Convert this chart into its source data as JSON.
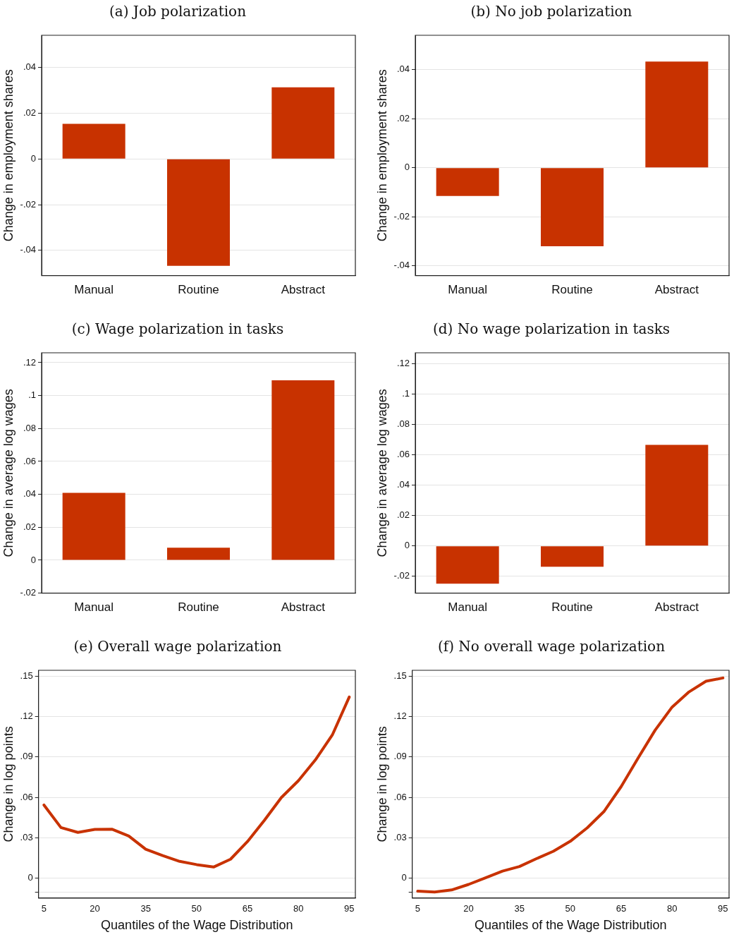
{
  "chart_data": [
    {
      "type": "bar",
      "title": "(a) Job polarization",
      "ylabel": "Change in employment shares",
      "categories": [
        "Manual",
        "Routine",
        "Abstract"
      ],
      "values": [
        0.0153,
        -0.0467,
        0.0313
      ],
      "color": "#c83200",
      "ylim": [
        -0.051,
        0.054
      ],
      "yticks": [
        {
          "value": -0.04,
          "label": "-.04"
        },
        {
          "value": -0.02,
          "label": "-.02"
        },
        {
          "value": 0,
          "label": "0"
        },
        {
          "value": 0.02,
          "label": ".02"
        },
        {
          "value": 0.04,
          "label": ".04"
        }
      ],
      "grid": "y"
    },
    {
      "type": "bar",
      "title": "(b) No job polarization",
      "ylabel": "Change in employment shares",
      "categories": [
        "Manual",
        "Routine",
        "Abstract"
      ],
      "values": [
        -0.0115,
        -0.032,
        0.0433
      ],
      "color": "#c83200",
      "ylim": [
        -0.044,
        0.054
      ],
      "yticks": [
        {
          "value": -0.04,
          "label": "-.04"
        },
        {
          "value": -0.02,
          "label": "-.02"
        },
        {
          "value": 0,
          "label": "0"
        },
        {
          "value": 0.02,
          "label": ".02"
        },
        {
          "value": 0.04,
          "label": ".04"
        }
      ],
      "grid": "y"
    },
    {
      "type": "bar",
      "title": "(c) Wage polarization in tasks",
      "ylabel": "Change in average log wages",
      "categories": [
        "Manual",
        "Routine",
        "Abstract"
      ],
      "values": [
        0.0409,
        0.0076,
        0.1093
      ],
      "color": "#c83200",
      "ylim": [
        -0.02,
        0.126
      ],
      "yticks": [
        {
          "value": -0.02,
          "label": "-.02"
        },
        {
          "value": 0,
          "label": "0"
        },
        {
          "value": 0.02,
          "label": ".02"
        },
        {
          "value": 0.04,
          "label": ".04"
        },
        {
          "value": 0.06,
          "label": ".06"
        },
        {
          "value": 0.08,
          "label": ".08"
        },
        {
          "value": 0.1,
          "label": ".1"
        },
        {
          "value": 0.12,
          "label": ".12"
        }
      ],
      "grid": "y"
    },
    {
      "type": "bar",
      "title": "(d) No wage polarization in tasks",
      "ylabel": "Change in average log wages",
      "categories": [
        "Manual",
        "Routine",
        "Abstract"
      ],
      "values": [
        -0.0248,
        -0.0137,
        0.0665
      ],
      "color": "#c83200",
      "ylim": [
        -0.031,
        0.127
      ],
      "yticks": [
        {
          "value": -0.02,
          "label": "-.02"
        },
        {
          "value": 0,
          "label": "0"
        },
        {
          "value": 0.02,
          "label": ".02"
        },
        {
          "value": 0.04,
          "label": ".04"
        },
        {
          "value": 0.06,
          "label": ".06"
        },
        {
          "value": 0.08,
          "label": ".08"
        },
        {
          "value": 0.1,
          "label": ".1"
        },
        {
          "value": 0.12,
          "label": ".12"
        }
      ],
      "grid": "y"
    },
    {
      "type": "line",
      "title": "(e) Overall wage polarization",
      "xlabel": "Quantiles of the Wage Distribution",
      "ylabel": "Change in log points",
      "x": [
        5,
        10,
        15,
        20,
        25,
        30,
        35,
        40,
        45,
        50,
        55,
        60,
        65,
        70,
        75,
        80,
        85,
        90,
        95
      ],
      "values": [
        0.0544,
        0.0377,
        0.0341,
        0.0363,
        0.0365,
        0.0314,
        0.0216,
        0.0169,
        0.0126,
        0.0102,
        0.0084,
        0.0142,
        0.0273,
        0.0431,
        0.06,
        0.0724,
        0.0878,
        0.1063,
        0.1345
      ],
      "color": "#c83200",
      "marker": "none",
      "xlim": [
        3.4,
        96.8
      ],
      "xticks": [
        5,
        20,
        35,
        50,
        65,
        80,
        95
      ],
      "ylim": [
        -0.0146,
        0.1543
      ],
      "yticks": [
        {
          "value": -0.01,
          "label": null
        },
        {
          "value": 0,
          "label": "0"
        },
        {
          "value": 0.03,
          "label": ".03"
        },
        {
          "value": 0.06,
          "label": ".06"
        },
        {
          "value": 0.09,
          "label": ".09"
        },
        {
          "value": 0.12,
          "label": ".12"
        },
        {
          "value": 0.15,
          "label": ".15"
        }
      ],
      "grid": "y"
    },
    {
      "type": "line",
      "title": "(f) No overall wage polarization",
      "xlabel": "Quantiles of the Wage Distribution",
      "ylabel": "Change in log points",
      "x": [
        5,
        10,
        15,
        20,
        25,
        30,
        35,
        40,
        45,
        50,
        55,
        60,
        65,
        70,
        75,
        80,
        85,
        90,
        95
      ],
      "values": [
        -0.0095,
        -0.0101,
        -0.0086,
        -0.0045,
        0.0004,
        0.0054,
        0.0088,
        0.0146,
        0.0201,
        0.0275,
        0.0375,
        0.0498,
        0.0681,
        0.0893,
        0.1099,
        0.127,
        0.1383,
        0.1462,
        0.1486
      ],
      "color": "#c83200",
      "marker": "none",
      "xlim": [
        3.4,
        96.8
      ],
      "xticks": [
        5,
        20,
        35,
        50,
        65,
        80,
        95
      ],
      "ylim": [
        -0.0146,
        0.1543
      ],
      "yticks": [
        {
          "value": -0.01,
          "label": null
        },
        {
          "value": 0,
          "label": "0"
        },
        {
          "value": 0.03,
          "label": ".03"
        },
        {
          "value": 0.06,
          "label": ".06"
        },
        {
          "value": 0.09,
          "label": ".09"
        },
        {
          "value": 0.12,
          "label": ".12"
        },
        {
          "value": 0.15,
          "label": ".15"
        }
      ],
      "grid": "y"
    }
  ]
}
